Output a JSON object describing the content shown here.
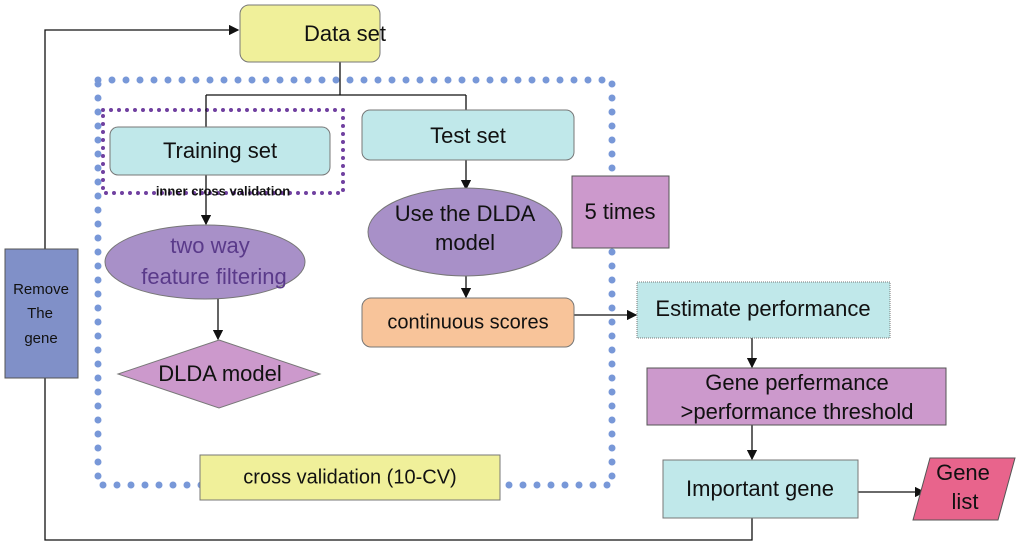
{
  "nodes": {
    "data_set": "Data set",
    "training_set": "Training set",
    "test_set": "Test set",
    "inner_cv": "inner cross validation",
    "two_way_1": "two way",
    "two_way_2": "feature filtering",
    "use_dlda_1": "Use the DLDA",
    "use_dlda_2": "model",
    "dlda_model": "DLDA model",
    "continuous_scores": "continuous scores",
    "five_times": "5 times",
    "estimate_performance": "Estimate performance",
    "gene_perf_1": "Gene perfermance",
    "gene_perf_2": ">performance threshold",
    "important_gene": "Important gene",
    "gene_list_1": "Gene",
    "gene_list_2": "list",
    "remove_1": "Remove",
    "remove_2": "The",
    "remove_3": "gene",
    "cross_validation": "cross validation (10-CV)"
  },
  "colors": {
    "yellow": "#f0f09a",
    "cyan": "#c0e8ea",
    "lavender": "#a890c8",
    "pink_purple": "#cc99cc",
    "orange": "#f8c49a",
    "magenta": "#e8648c",
    "blue_gray": "#8090c8",
    "outer_dots": "#7898d8",
    "inner_dots": "#7040a0"
  }
}
